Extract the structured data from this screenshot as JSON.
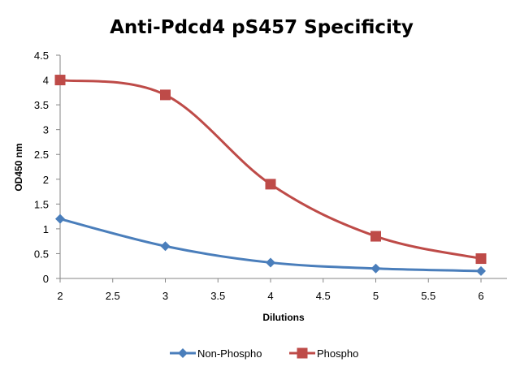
{
  "chart_data": {
    "type": "line",
    "title": "Anti-Pdcd4 pS457 Specificity",
    "xlabel": "Dilutions",
    "ylabel": "OD450 nm",
    "xlim": [
      2,
      6
    ],
    "ylim": [
      0,
      4.5
    ],
    "x_ticks": [
      "2",
      "2.5",
      "3",
      "3.5",
      "4",
      "4.5",
      "5",
      "5.5",
      "6"
    ],
    "y_ticks": [
      "0",
      "0.5",
      "1",
      "1.5",
      "2",
      "2.5",
      "3",
      "3.5",
      "4",
      "4.5"
    ],
    "grid": false,
    "smooth": true,
    "legend_position": "bottom",
    "x": [
      2,
      3,
      4,
      5,
      6
    ],
    "series": [
      {
        "name": "Non-Phospho",
        "color": "#4a7ebb",
        "marker": "diamond",
        "values": [
          1.2,
          0.65,
          0.32,
          0.2,
          0.15
        ]
      },
      {
        "name": "Phospho",
        "color": "#be4b48",
        "marker": "square",
        "values": [
          4.0,
          3.7,
          1.9,
          0.85,
          0.4
        ]
      }
    ]
  }
}
